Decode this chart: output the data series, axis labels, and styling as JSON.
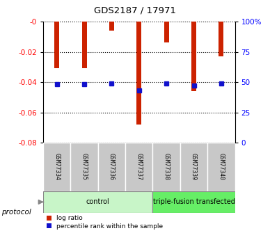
{
  "title": "GDS2187 / 17971",
  "samples": [
    "GSM77334",
    "GSM77335",
    "GSM77336",
    "GSM77337",
    "GSM77338",
    "GSM77339",
    "GSM77340"
  ],
  "log_ratio": [
    -0.031,
    -0.031,
    -0.006,
    -0.068,
    -0.014,
    -0.046,
    -0.023
  ],
  "percentile_rank_pct": [
    48,
    48,
    49,
    43,
    49,
    47,
    49
  ],
  "bar_color": "#cc2200",
  "dot_color": "#1111cc",
  "ylim_left": [
    -0.08,
    0.0
  ],
  "ylim_right": [
    0,
    100
  ],
  "yticks_left": [
    0.0,
    -0.02,
    -0.04,
    -0.06,
    -0.08
  ],
  "yticks_left_labels": [
    "-0",
    "-0.02",
    "-0.04",
    "-0.06",
    "-0.08"
  ],
  "yticks_right": [
    100,
    75,
    50,
    25,
    0
  ],
  "yticks_right_labels": [
    "100%",
    "75",
    "50",
    "25",
    "0"
  ],
  "protocol_groups": [
    {
      "label": "control",
      "start": 0,
      "end": 4,
      "color": "#c8f5c8"
    },
    {
      "label": "triple-fusion transfected",
      "start": 4,
      "end": 7,
      "color": "#66ee66"
    }
  ],
  "protocol_label": "protocol",
  "legend_items": [
    {
      "label": "log ratio",
      "color": "#cc2200"
    },
    {
      "label": "percentile rank within the sample",
      "color": "#1111cc"
    }
  ],
  "bar_width": 0.18,
  "dot_size": 5
}
